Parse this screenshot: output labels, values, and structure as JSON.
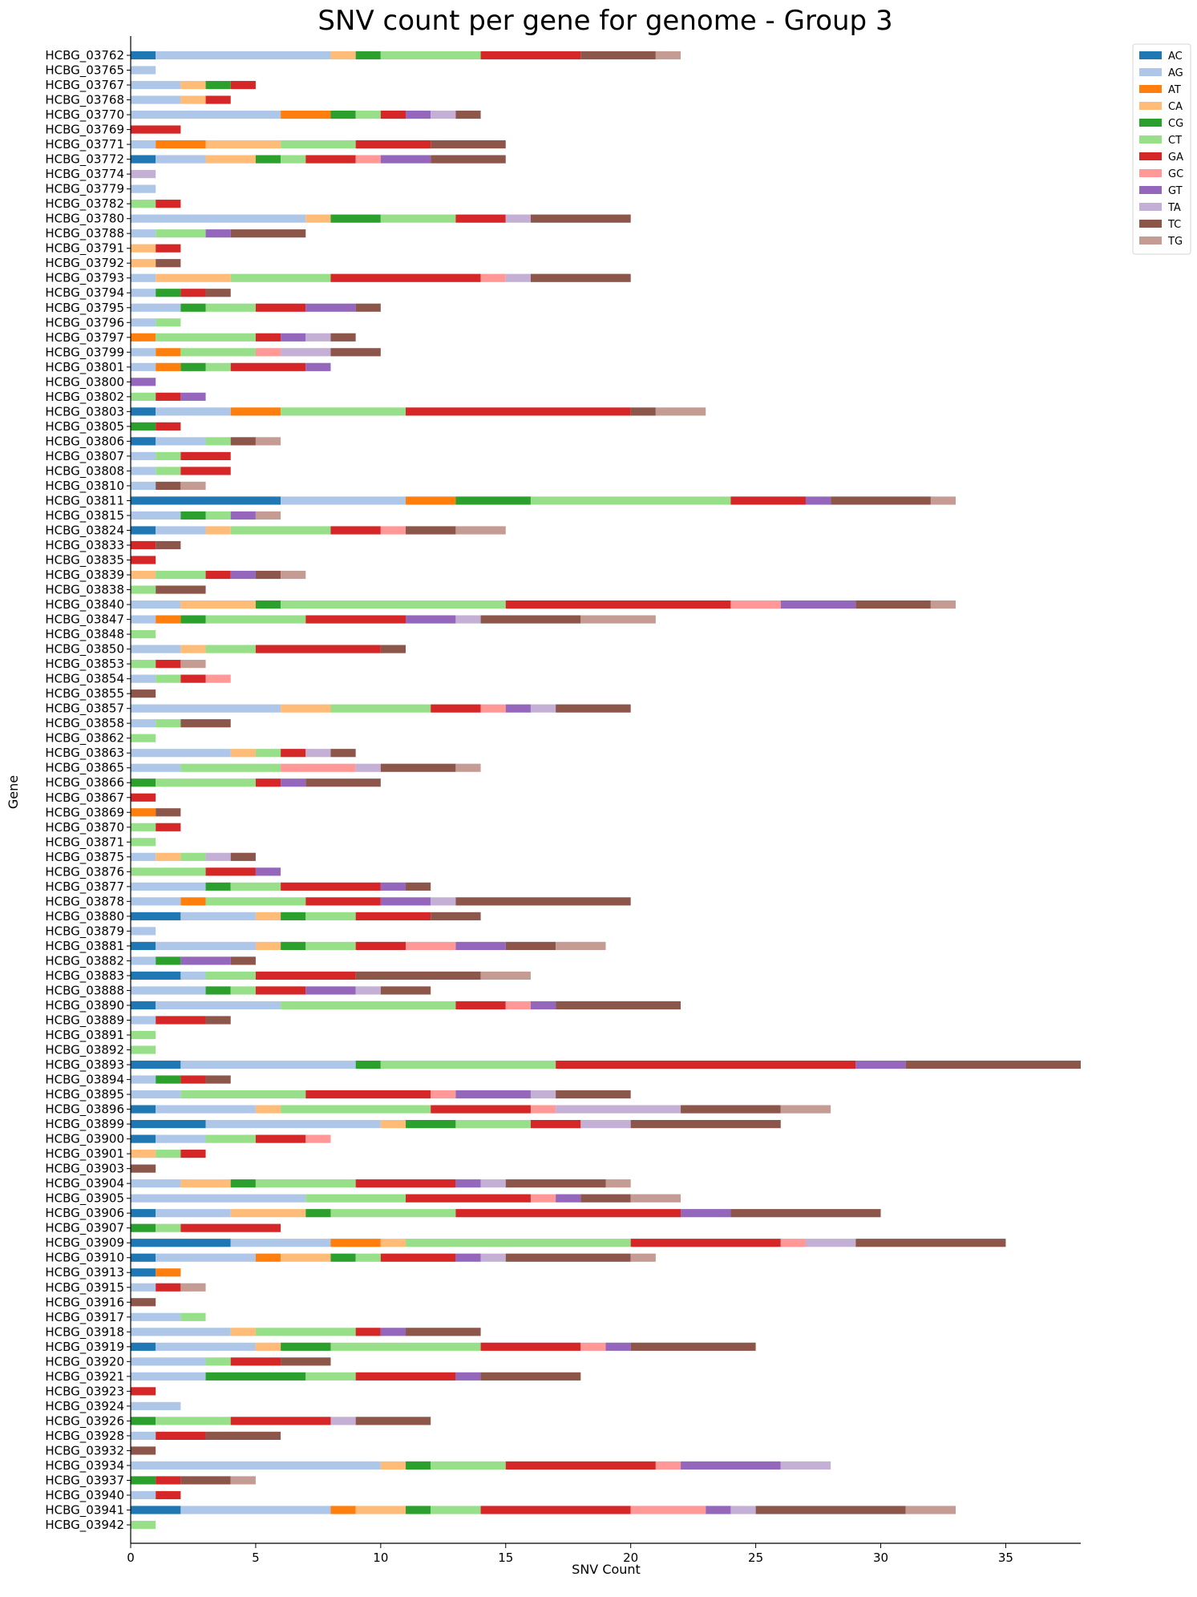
{
  "chart_data": {
    "type": "bar",
    "orientation": "horizontal",
    "stacked": true,
    "title": "SNV count per gene for genome - Group 3",
    "xlabel": "SNV Count",
    "ylabel": "Gene",
    "xlim": [
      0,
      38
    ],
    "xticks": [
      0,
      5,
      10,
      15,
      20,
      25,
      30,
      35
    ],
    "grid": false,
    "legend_position": "top-right outside",
    "categories": [
      "HCBG_03762",
      "HCBG_03765",
      "HCBG_03767",
      "HCBG_03768",
      "HCBG_03770",
      "HCBG_03769",
      "HCBG_03771",
      "HCBG_03772",
      "HCBG_03774",
      "HCBG_03779",
      "HCBG_03782",
      "HCBG_03780",
      "HCBG_03788",
      "HCBG_03791",
      "HCBG_03792",
      "HCBG_03793",
      "HCBG_03794",
      "HCBG_03795",
      "HCBG_03796",
      "HCBG_03797",
      "HCBG_03799",
      "HCBG_03801",
      "HCBG_03800",
      "HCBG_03802",
      "HCBG_03803",
      "HCBG_03805",
      "HCBG_03806",
      "HCBG_03807",
      "HCBG_03808",
      "HCBG_03810",
      "HCBG_03811",
      "HCBG_03815",
      "HCBG_03824",
      "HCBG_03833",
      "HCBG_03835",
      "HCBG_03839",
      "HCBG_03838",
      "HCBG_03840",
      "HCBG_03847",
      "HCBG_03848",
      "HCBG_03850",
      "HCBG_03853",
      "HCBG_03854",
      "HCBG_03855",
      "HCBG_03857",
      "HCBG_03858",
      "HCBG_03862",
      "HCBG_03863",
      "HCBG_03865",
      "HCBG_03866",
      "HCBG_03867",
      "HCBG_03869",
      "HCBG_03870",
      "HCBG_03871",
      "HCBG_03875",
      "HCBG_03876",
      "HCBG_03877",
      "HCBG_03878",
      "HCBG_03880",
      "HCBG_03879",
      "HCBG_03881",
      "HCBG_03882",
      "HCBG_03883",
      "HCBG_03888",
      "HCBG_03890",
      "HCBG_03889",
      "HCBG_03891",
      "HCBG_03892",
      "HCBG_03893",
      "HCBG_03894",
      "HCBG_03895",
      "HCBG_03896",
      "HCBG_03899",
      "HCBG_03900",
      "HCBG_03901",
      "HCBG_03903",
      "HCBG_03904",
      "HCBG_03905",
      "HCBG_03906",
      "HCBG_03907",
      "HCBG_03909",
      "HCBG_03910",
      "HCBG_03913",
      "HCBG_03915",
      "HCBG_03916",
      "HCBG_03917",
      "HCBG_03918",
      "HCBG_03919",
      "HCBG_03920",
      "HCBG_03921",
      "HCBG_03923",
      "HCBG_03924",
      "HCBG_03926",
      "HCBG_03928",
      "HCBG_03932",
      "HCBG_03934",
      "HCBG_03937",
      "HCBG_03940",
      "HCBG_03941",
      "HCBG_03942"
    ],
    "series": [
      {
        "name": "AC",
        "color": "#1f77b4",
        "values": [
          1,
          0,
          0,
          0,
          0,
          0,
          0,
          1,
          0,
          0,
          0,
          0,
          0,
          0,
          0,
          0,
          0,
          0,
          0,
          0,
          0,
          0,
          0,
          0,
          1,
          0,
          1,
          0,
          0,
          0,
          6,
          0,
          1,
          0,
          0,
          0,
          0,
          0,
          0,
          0,
          0,
          0,
          0,
          0,
          0,
          0,
          0,
          0,
          0,
          0,
          0,
          0,
          0,
          0,
          0,
          0,
          0,
          0,
          2,
          0,
          1,
          0,
          2,
          0,
          1,
          0,
          0,
          0,
          2,
          0,
          0,
          1,
          3,
          1,
          0,
          0,
          0,
          0,
          1,
          0,
          4,
          1,
          1,
          0,
          0,
          0,
          0,
          1,
          0,
          0,
          0,
          0,
          0,
          0,
          0,
          0,
          0,
          0,
          2,
          0
        ]
      },
      {
        "name": "AG",
        "color": "#aec7e8",
        "values": [
          7,
          1,
          2,
          2,
          6,
          0,
          1,
          2,
          0,
          1,
          0,
          7,
          1,
          0,
          0,
          1,
          1,
          2,
          1,
          0,
          1,
          1,
          0,
          0,
          3,
          0,
          2,
          1,
          1,
          1,
          5,
          2,
          2,
          0,
          0,
          0,
          0,
          2,
          1,
          0,
          2,
          0,
          1,
          0,
          6,
          1,
          0,
          4,
          2,
          0,
          0,
          0,
          0,
          0,
          1,
          0,
          3,
          2,
          3,
          1,
          4,
          1,
          1,
          3,
          5,
          1,
          0,
          0,
          7,
          1,
          2,
          4,
          7,
          2,
          0,
          0,
          2,
          7,
          3,
          0,
          4,
          4,
          0,
          1,
          0,
          2,
          4,
          4,
          3,
          3,
          0,
          2,
          0,
          1,
          0,
          10,
          0,
          1,
          6,
          0
        ]
      },
      {
        "name": "AT",
        "color": "#ff7f0e",
        "values": [
          0,
          0,
          0,
          0,
          2,
          0,
          2,
          0,
          0,
          0,
          0,
          0,
          0,
          0,
          0,
          0,
          0,
          0,
          0,
          1,
          1,
          1,
          0,
          0,
          2,
          0,
          0,
          0,
          0,
          0,
          2,
          0,
          0,
          0,
          0,
          0,
          0,
          0,
          1,
          0,
          0,
          0,
          0,
          0,
          0,
          0,
          0,
          0,
          0,
          0,
          0,
          1,
          0,
          0,
          0,
          0,
          0,
          1,
          0,
          0,
          0,
          0,
          0,
          0,
          0,
          0,
          0,
          0,
          0,
          0,
          0,
          0,
          0,
          0,
          0,
          0,
          0,
          0,
          0,
          0,
          2,
          1,
          1,
          0,
          0,
          0,
          0,
          0,
          0,
          0,
          0,
          0,
          0,
          0,
          0,
          0,
          0,
          0,
          1,
          0
        ]
      },
      {
        "name": "CA",
        "color": "#ffbb78",
        "values": [
          1,
          0,
          1,
          1,
          0,
          0,
          3,
          2,
          0,
          0,
          0,
          1,
          0,
          1,
          1,
          3,
          0,
          0,
          0,
          0,
          0,
          0,
          0,
          0,
          0,
          0,
          0,
          0,
          0,
          0,
          0,
          0,
          1,
          0,
          0,
          1,
          0,
          3,
          0,
          0,
          1,
          0,
          0,
          0,
          2,
          0,
          0,
          1,
          0,
          0,
          0,
          0,
          0,
          0,
          1,
          0,
          0,
          0,
          1,
          0,
          1,
          0,
          0,
          0,
          0,
          0,
          0,
          0,
          0,
          0,
          0,
          1,
          1,
          0,
          1,
          0,
          2,
          0,
          3,
          0,
          1,
          2,
          0,
          0,
          0,
          0,
          1,
          1,
          0,
          0,
          0,
          0,
          0,
          0,
          0,
          1,
          0,
          0,
          2,
          0
        ]
      },
      {
        "name": "CG",
        "color": "#2ca02c",
        "values": [
          1,
          0,
          1,
          0,
          1,
          0,
          0,
          1,
          0,
          0,
          0,
          2,
          0,
          0,
          0,
          0,
          1,
          1,
          0,
          0,
          0,
          1,
          0,
          0,
          0,
          1,
          0,
          0,
          0,
          0,
          3,
          1,
          0,
          0,
          0,
          0,
          0,
          1,
          1,
          0,
          0,
          0,
          0,
          0,
          0,
          0,
          0,
          0,
          0,
          1,
          0,
          0,
          0,
          0,
          0,
          0,
          1,
          0,
          1,
          0,
          1,
          1,
          0,
          1,
          0,
          0,
          0,
          0,
          1,
          1,
          0,
          0,
          2,
          0,
          0,
          0,
          1,
          0,
          1,
          1,
          0,
          1,
          0,
          0,
          0,
          0,
          0,
          2,
          0,
          4,
          0,
          0,
          1,
          0,
          0,
          1,
          1,
          0,
          1,
          0
        ]
      },
      {
        "name": "CT",
        "color": "#98df8a",
        "values": [
          4,
          0,
          0,
          0,
          1,
          0,
          3,
          1,
          0,
          0,
          1,
          3,
          2,
          0,
          0,
          4,
          0,
          2,
          1,
          4,
          3,
          1,
          0,
          1,
          5,
          0,
          1,
          1,
          1,
          0,
          8,
          1,
          4,
          0,
          0,
          2,
          1,
          9,
          4,
          1,
          2,
          1,
          1,
          0,
          4,
          1,
          1,
          1,
          4,
          4,
          0,
          0,
          1,
          1,
          1,
          3,
          2,
          4,
          2,
          0,
          2,
          0,
          2,
          1,
          7,
          0,
          1,
          1,
          7,
          0,
          5,
          6,
          3,
          2,
          1,
          0,
          4,
          4,
          5,
          1,
          9,
          1,
          0,
          0,
          0,
          1,
          4,
          6,
          1,
          2,
          0,
          0,
          3,
          0,
          0,
          3,
          0,
          0,
          2,
          1
        ]
      },
      {
        "name": "GA",
        "color": "#d62728",
        "values": [
          4,
          0,
          1,
          1,
          1,
          2,
          3,
          2,
          0,
          0,
          1,
          2,
          0,
          1,
          0,
          6,
          1,
          2,
          0,
          1,
          0,
          3,
          0,
          1,
          9,
          1,
          0,
          2,
          2,
          0,
          3,
          0,
          2,
          1,
          1,
          1,
          0,
          9,
          4,
          0,
          5,
          1,
          1,
          0,
          2,
          0,
          0,
          1,
          0,
          1,
          1,
          0,
          1,
          0,
          0,
          2,
          4,
          3,
          3,
          0,
          2,
          0,
          4,
          2,
          2,
          2,
          0,
          0,
          12,
          1,
          5,
          4,
          2,
          2,
          1,
          0,
          4,
          5,
          9,
          4,
          6,
          3,
          0,
          1,
          0,
          0,
          1,
          4,
          2,
          4,
          1,
          0,
          4,
          2,
          0,
          6,
          1,
          1,
          6,
          0
        ]
      },
      {
        "name": "GC",
        "color": "#ff9896",
        "values": [
          0,
          0,
          0,
          0,
          0,
          0,
          0,
          1,
          0,
          0,
          0,
          0,
          0,
          0,
          0,
          1,
          0,
          0,
          0,
          0,
          1,
          0,
          0,
          0,
          0,
          0,
          0,
          0,
          0,
          0,
          0,
          0,
          1,
          0,
          0,
          0,
          0,
          2,
          0,
          0,
          0,
          0,
          1,
          0,
          1,
          0,
          0,
          0,
          3,
          0,
          0,
          0,
          0,
          0,
          0,
          0,
          0,
          0,
          0,
          0,
          2,
          0,
          0,
          0,
          1,
          0,
          0,
          0,
          0,
          0,
          1,
          1,
          0,
          1,
          0,
          0,
          0,
          1,
          0,
          0,
          1,
          0,
          0,
          0,
          0,
          0,
          0,
          1,
          0,
          0,
          0,
          0,
          0,
          0,
          0,
          1,
          0,
          0,
          3,
          0
        ]
      },
      {
        "name": "GT",
        "color": "#9467bd",
        "values": [
          0,
          0,
          0,
          0,
          1,
          0,
          0,
          2,
          0,
          0,
          0,
          0,
          1,
          0,
          0,
          0,
          0,
          2,
          0,
          1,
          0,
          1,
          1,
          1,
          0,
          0,
          0,
          0,
          0,
          0,
          1,
          1,
          0,
          0,
          0,
          1,
          0,
          3,
          2,
          0,
          0,
          0,
          0,
          0,
          1,
          0,
          0,
          0,
          0,
          1,
          0,
          0,
          0,
          0,
          0,
          1,
          1,
          2,
          0,
          0,
          2,
          2,
          0,
          2,
          1,
          0,
          0,
          0,
          2,
          0,
          3,
          0,
          0,
          0,
          0,
          0,
          1,
          1,
          2,
          0,
          0,
          1,
          0,
          0,
          0,
          0,
          1,
          1,
          0,
          1,
          0,
          0,
          0,
          0,
          0,
          4,
          0,
          0,
          1,
          0
        ]
      },
      {
        "name": "TA",
        "color": "#c5b0d5",
        "values": [
          0,
          0,
          0,
          0,
          1,
          0,
          0,
          0,
          1,
          0,
          0,
          1,
          0,
          0,
          0,
          1,
          0,
          0,
          0,
          1,
          2,
          0,
          0,
          0,
          0,
          0,
          0,
          0,
          0,
          0,
          0,
          0,
          0,
          0,
          0,
          0,
          0,
          0,
          1,
          0,
          0,
          0,
          0,
          0,
          1,
          0,
          0,
          1,
          1,
          0,
          0,
          0,
          0,
          0,
          1,
          0,
          0,
          1,
          0,
          0,
          0,
          0,
          0,
          1,
          0,
          0,
          0,
          0,
          0,
          0,
          1,
          5,
          2,
          0,
          0,
          0,
          1,
          0,
          0,
          0,
          2,
          1,
          0,
          0,
          0,
          0,
          0,
          0,
          0,
          0,
          0,
          0,
          1,
          0,
          0,
          2,
          0,
          0,
          1,
          0
        ]
      },
      {
        "name": "TC",
        "color": "#8c564b",
        "values": [
          3,
          0,
          0,
          0,
          1,
          0,
          3,
          3,
          0,
          0,
          0,
          4,
          3,
          0,
          1,
          4,
          1,
          1,
          0,
          1,
          2,
          0,
          0,
          0,
          1,
          0,
          1,
          0,
          0,
          1,
          4,
          0,
          2,
          1,
          0,
          1,
          2,
          3,
          4,
          0,
          1,
          0,
          0,
          1,
          3,
          2,
          0,
          1,
          3,
          3,
          0,
          1,
          0,
          0,
          1,
          0,
          1,
          7,
          2,
          0,
          2,
          1,
          5,
          2,
          5,
          1,
          0,
          0,
          7,
          1,
          3,
          4,
          6,
          0,
          0,
          1,
          4,
          2,
          6,
          0,
          6,
          5,
          0,
          0,
          1,
          0,
          3,
          5,
          2,
          4,
          0,
          0,
          3,
          3,
          1,
          0,
          2,
          0,
          6,
          0
        ]
      },
      {
        "name": "TG",
        "color": "#c49c94",
        "values": [
          1,
          0,
          0,
          0,
          0,
          0,
          0,
          0,
          0,
          0,
          0,
          0,
          0,
          0,
          0,
          0,
          0,
          0,
          0,
          0,
          0,
          0,
          0,
          0,
          2,
          0,
          1,
          0,
          0,
          1,
          1,
          1,
          2,
          0,
          0,
          1,
          0,
          1,
          3,
          0,
          0,
          1,
          0,
          0,
          0,
          0,
          0,
          0,
          1,
          0,
          0,
          0,
          0,
          0,
          0,
          0,
          0,
          0,
          0,
          0,
          2,
          0,
          2,
          0,
          0,
          0,
          0,
          0,
          0,
          0,
          0,
          2,
          0,
          0,
          0,
          0,
          1,
          2,
          0,
          0,
          0,
          1,
          0,
          1,
          0,
          0,
          0,
          0,
          0,
          0,
          0,
          0,
          0,
          0,
          0,
          0,
          1,
          0,
          2,
          0
        ]
      }
    ]
  }
}
